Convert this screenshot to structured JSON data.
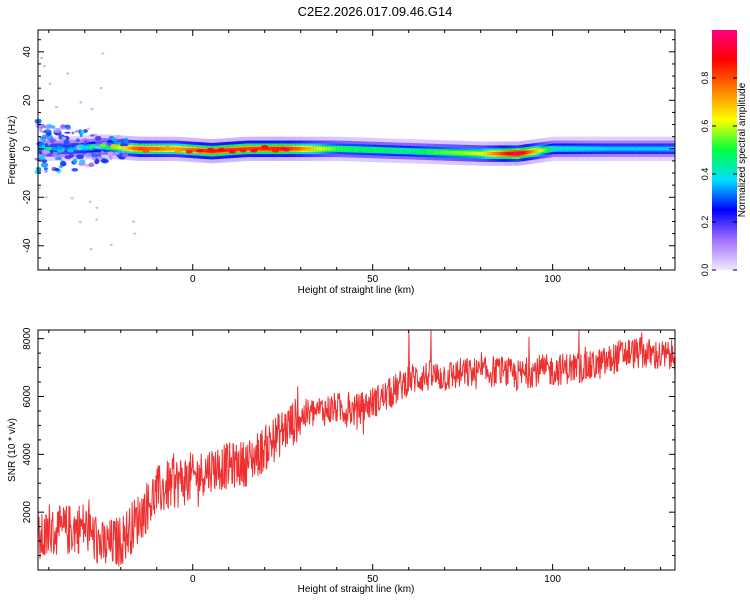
{
  "chart_data": [
    {
      "type": "heatmap",
      "title": "C2E2.2026.017.09.46.G14",
      "xlabel": "Height of straight line (km)",
      "ylabel": "Frequency (Hz)",
      "xlim": [
        -43,
        134
      ],
      "ylim": [
        -50,
        49
      ],
      "x_ticks": [
        0,
        50,
        100
      ],
      "y_ticks": [
        -40,
        -20,
        0,
        20,
        40
      ],
      "colorbar": {
        "label": "Normalized spectral amplitude",
        "ticks": [
          0.0,
          0.2,
          0.4,
          0.6,
          0.8
        ],
        "range": [
          0,
          1
        ],
        "colors": [
          "#f0e8ff",
          "#a070ff",
          "#0000ff",
          "#00e0ff",
          "#00ff40",
          "#ffff00",
          "#ff8000",
          "#ff0000",
          "#ff0080"
        ]
      },
      "ridge": {
        "x": [
          -43,
          -35,
          -25,
          -15,
          -5,
          5,
          15,
          25,
          40,
          60,
          80,
          90,
          100,
          115,
          134
        ],
        "frequency": [
          0,
          0,
          1,
          0,
          0,
          -1,
          0,
          0,
          0,
          -1,
          -2,
          -2,
          0,
          0,
          0
        ],
        "amplitude": [
          0.35,
          0.3,
          0.45,
          0.8,
          0.7,
          0.85,
          0.8,
          0.85,
          0.5,
          0.45,
          0.6,
          0.95,
          0.4,
          0.35,
          0.35
        ]
      }
    },
    {
      "type": "line",
      "title": "",
      "xlabel": "Height of straight line (km)",
      "ylabel": "SNR (10 * v/v)",
      "xlim": [
        -43,
        134
      ],
      "ylim": [
        0,
        8300
      ],
      "x_ticks": [
        0,
        50,
        100
      ],
      "y_ticks": [
        2000,
        4000,
        6000,
        8000
      ],
      "color": "#ef3030",
      "trend": {
        "x": [
          -43,
          -38,
          -30,
          -25,
          -20,
          -15,
          -10,
          -5,
          0,
          5,
          10,
          15,
          20,
          25,
          30,
          35,
          40,
          45,
          50,
          55,
          60,
          65,
          70,
          75,
          80,
          85,
          90,
          95,
          100,
          105,
          110,
          115,
          120,
          125,
          130,
          134
        ],
        "y": [
          1000,
          1300,
          1500,
          800,
          1000,
          1800,
          2700,
          3000,
          3200,
          3500,
          3600,
          3700,
          4200,
          4800,
          5300,
          5500,
          5600,
          5500,
          5800,
          6100,
          6600,
          6700,
          6700,
          6800,
          6800,
          6900,
          6700,
          6900,
          6900,
          7000,
          7000,
          7200,
          7500,
          7500,
          7400,
          7400
        ]
      }
    }
  ]
}
